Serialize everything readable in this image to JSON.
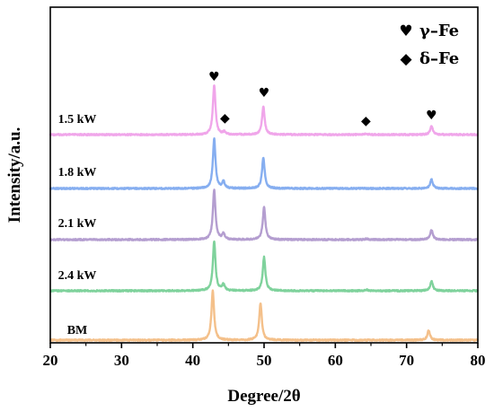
{
  "chart_data": {
    "type": "line",
    "xlabel": "Degree/2θ",
    "ylabel": "Intensity/a.u.",
    "xlim": [
      20,
      80
    ],
    "x_ticks": [
      "20",
      "30",
      "40",
      "50",
      "60",
      "70",
      "80"
    ],
    "grid": false,
    "legend": {
      "placement": "top-right",
      "entries": [
        {
          "symbol": "♥",
          "label": "γ–Fe"
        },
        {
          "symbol": "◆",
          "label": "δ–Fe"
        }
      ]
    },
    "series": [
      {
        "name": "1.5 kW",
        "color": "#f0a6ea",
        "peaks": [
          {
            "x": 43.0,
            "h": 1.0
          },
          {
            "x": 44.4,
            "h": 0.05
          },
          {
            "x": 49.9,
            "h": 0.57
          },
          {
            "x": 64.3,
            "h": 0.02
          },
          {
            "x": 73.5,
            "h": 0.17
          }
        ]
      },
      {
        "name": "1.8 kW",
        "color": "#86aef0",
        "peaks": [
          {
            "x": 43.0,
            "h": 1.0
          },
          {
            "x": 44.3,
            "h": 0.13
          },
          {
            "x": 49.9,
            "h": 0.63
          },
          {
            "x": 73.5,
            "h": 0.18
          }
        ]
      },
      {
        "name": "2.1 kW",
        "color": "#b49ed0",
        "peaks": [
          {
            "x": 43.0,
            "h": 1.0
          },
          {
            "x": 44.3,
            "h": 0.11
          },
          {
            "x": 50.0,
            "h": 0.65
          },
          {
            "x": 64.4,
            "h": 0.02
          },
          {
            "x": 73.5,
            "h": 0.19
          }
        ]
      },
      {
        "name": "2.4 kW",
        "color": "#7fd29c",
        "peaks": [
          {
            "x": 43.0,
            "h": 1.0
          },
          {
            "x": 44.3,
            "h": 0.12
          },
          {
            "x": 50.0,
            "h": 0.68
          },
          {
            "x": 64.4,
            "h": 0.02
          },
          {
            "x": 73.5,
            "h": 0.19
          }
        ]
      },
      {
        "name": "BM",
        "color": "#f4c08a",
        "peaks": [
          {
            "x": 42.8,
            "h": 1.0
          },
          {
            "x": 49.5,
            "h": 0.75
          },
          {
            "x": 73.1,
            "h": 0.2
          }
        ]
      }
    ],
    "peak_markers": [
      {
        "symbol": "♥",
        "phase": "γ–Fe",
        "x": 43.0
      },
      {
        "symbol": "◆",
        "phase": "δ–Fe",
        "x": 44.5
      },
      {
        "symbol": "♥",
        "phase": "γ–Fe",
        "x": 50.0
      },
      {
        "symbol": "◆",
        "phase": "δ–Fe",
        "x": 64.3
      },
      {
        "symbol": "♥",
        "phase": "γ–Fe",
        "x": 73.5
      }
    ]
  }
}
